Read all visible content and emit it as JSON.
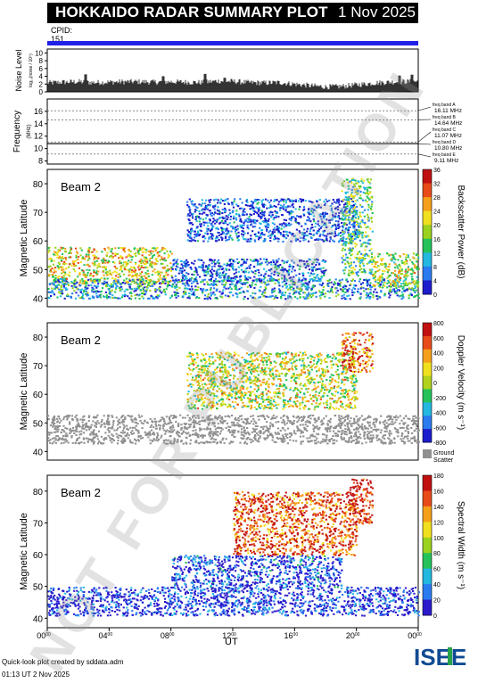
{
  "header": {
    "title": "HOKKAIDO RADAR SUMMARY PLOT",
    "date": "1 Nov 2025",
    "cpid_label": "CPID:",
    "cpid_value": "151"
  },
  "footer": {
    "credit": "Quick-look plot created by sddata.adm",
    "created": "01:13 UT  2 Nov 2025"
  },
  "logo_text": "ISEE",
  "watermark": "NOT FOR PUBLICATION",
  "colors": {
    "cpid_bar": "#2020e8",
    "ground_scatter": "#909090",
    "power_scale": [
      "#1c1ccc",
      "#2a7bf0",
      "#22b8e0",
      "#25c25a",
      "#9ad21d",
      "#f0e01f",
      "#f5a01b",
      "#e84a1a",
      "#c01010"
    ],
    "velocity_scale": [
      "#1c1ccc",
      "#2a7bf0",
      "#22b8e0",
      "#25c25a",
      "#b0d21d",
      "#f0e01f",
      "#f5a01b",
      "#e84a1a",
      "#c01010"
    ],
    "width_scale": [
      "#2a1acc",
      "#2a7bf0",
      "#22b8e0",
      "#25c25a",
      "#9ad21d",
      "#f0e01f",
      "#f5a01b",
      "#e84a1a",
      "#c01010"
    ]
  },
  "chart_data": [
    {
      "type": "line",
      "panel": "noise",
      "ylabel": "Noise Level",
      "ylabel_sub": "log₁₀(noise / 10⁵)",
      "ylim": [
        0,
        11
      ],
      "yticks": [
        "0",
        "2",
        "4",
        "6",
        "8",
        "10"
      ],
      "xlim": [
        0,
        24
      ],
      "x": [
        0,
        1,
        2,
        3,
        4,
        5,
        6,
        7,
        8,
        9,
        10,
        11,
        12,
        13,
        14,
        15,
        16,
        17,
        18,
        19,
        20,
        21,
        22,
        23,
        24
      ],
      "values": [
        2.3,
        2.5,
        2.6,
        2.4,
        2.5,
        2.6,
        2.6,
        2.5,
        2.6,
        2.5,
        2.4,
        2.8,
        2.7,
        2.4,
        2.3,
        2.4,
        2.0,
        1.6,
        1.3,
        1.4,
        1.8,
        2.2,
        2.5,
        2.6,
        2.7
      ],
      "peaks": [
        [
          2.5,
          4.5
        ],
        [
          7.5,
          4.0
        ],
        [
          10.2,
          4.6
        ],
        [
          11.5,
          3.6
        ],
        [
          22.8,
          4.2
        ],
        [
          23.6,
          4.4
        ]
      ]
    },
    {
      "type": "line",
      "panel": "frequency",
      "ylabel": "Frequency",
      "ylabel_sub": "(MHz)",
      "ylim": [
        7.5,
        18
      ],
      "yticks": [
        "8",
        "10",
        "12",
        "14",
        "16"
      ],
      "xlim": [
        0,
        24
      ],
      "bands": [
        {
          "label": "freq band A",
          "value_label": "16.11 MHz",
          "mhz": 16.11
        },
        {
          "label": "freq band B",
          "value_label": "14.64 MHz",
          "mhz": 14.64
        },
        {
          "label": "freq band C",
          "value_label": "11.07 MHz",
          "mhz": 11.07
        },
        {
          "label": "freq band D",
          "value_label": "10.80 MHz",
          "mhz": 10.8
        },
        {
          "label": "freq band E",
          "value_label": "9.11 MHz",
          "mhz": 9.11
        }
      ],
      "series": [
        {
          "mhz": 10.8,
          "x": [
            0,
            24
          ]
        }
      ]
    },
    {
      "type": "heatmap",
      "panel": "power",
      "beam_label": "Beam  2",
      "ylabel": "Magnetic Latitude",
      "ylim": [
        37,
        85
      ],
      "yticks": [
        "40",
        "50",
        "60",
        "70",
        "80"
      ],
      "xlim": [
        0,
        24
      ],
      "colorbar_label": "Backscatter Power (dB)",
      "colorbar_range": [
        0,
        36
      ],
      "colorbar_ticks": [
        "0",
        "4",
        "8",
        "12",
        "16",
        "20",
        "24",
        "28",
        "32",
        "36"
      ],
      "features": [
        {
          "t": [
            0,
            8
          ],
          "lat": [
            45,
            58
          ],
          "level": 0.6
        },
        {
          "t": [
            0,
            24
          ],
          "lat": [
            40,
            47
          ],
          "level": 0.25
        },
        {
          "t": [
            8,
            18
          ],
          "lat": [
            46,
            54
          ],
          "level": 0.15
        },
        {
          "t": [
            9,
            20
          ],
          "lat": [
            60,
            75
          ],
          "level": 0.1
        },
        {
          "t": [
            19,
            21
          ],
          "lat": [
            48,
            82
          ],
          "level": 0.4
        },
        {
          "t": [
            21,
            24
          ],
          "lat": [
            44,
            56
          ],
          "level": 0.55
        }
      ]
    },
    {
      "type": "heatmap",
      "panel": "velocity",
      "beam_label": "Beam  2",
      "ylabel": "Magnetic Latitude",
      "ylim": [
        37,
        85
      ],
      "yticks": [
        "40",
        "50",
        "60",
        "70",
        "80"
      ],
      "xlim": [
        0,
        24
      ],
      "colorbar_label": "Doppler Velocity (m s⁻¹)",
      "colorbar_range": [
        -800,
        800
      ],
      "colorbar_ticks": [
        "-800",
        "-600",
        "-400",
        "-200",
        "0",
        "200",
        "400",
        "600",
        "800"
      ],
      "legend_ground": "Ground",
      "legend_scatter": "Scatter",
      "features": [
        {
          "t": [
            0,
            24
          ],
          "lat": [
            43,
            53
          ],
          "kind": "ground"
        },
        {
          "t": [
            9,
            20
          ],
          "lat": [
            55,
            75
          ],
          "level": 0.55
        },
        {
          "t": [
            19,
            21
          ],
          "lat": [
            68,
            82
          ],
          "level": 0.8
        }
      ]
    },
    {
      "type": "heatmap",
      "panel": "width",
      "beam_label": "Beam  2",
      "ylabel": "Magnetic Latitude",
      "ylim": [
        37,
        85
      ],
      "yticks": [
        "40",
        "50",
        "60",
        "70",
        "80"
      ],
      "xlim": [
        0,
        24
      ],
      "xlabel": "UT",
      "xticks": [
        "00",
        "04",
        "08",
        "12",
        "16",
        "20",
        "00"
      ],
      "colorbar_label": "Spectral Width (m s⁻¹)",
      "colorbar_range": [
        0,
        180
      ],
      "colorbar_ticks": [
        "0",
        "20",
        "40",
        "60",
        "80",
        "100",
        "120",
        "140",
        "160",
        "180"
      ],
      "features": [
        {
          "t": [
            0,
            24
          ],
          "lat": [
            41,
            50
          ],
          "level": 0.05
        },
        {
          "t": [
            8,
            19
          ],
          "lat": [
            50,
            60
          ],
          "level": 0.1
        },
        {
          "t": [
            12,
            20
          ],
          "lat": [
            60,
            80
          ],
          "level": 0.85
        },
        {
          "t": [
            19.5,
            21
          ],
          "lat": [
            70,
            84
          ],
          "level": 0.95
        }
      ]
    }
  ]
}
